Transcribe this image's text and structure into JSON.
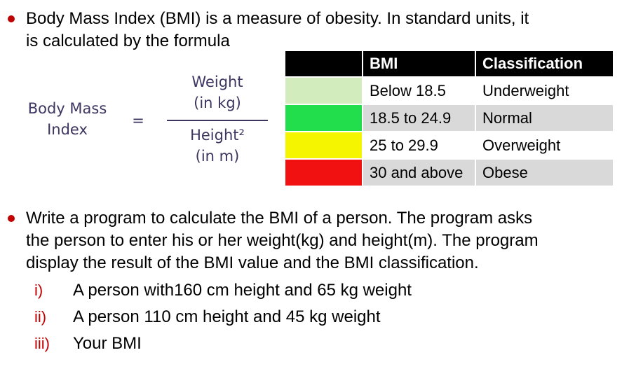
{
  "bullet1": {
    "line1": "Body Mass Index (BMI) is a measure of obesity. In standard units, it",
    "line2": "is calculated by the formula"
  },
  "formula": {
    "lhs_line1": "Body Mass",
    "lhs_line2": "Index",
    "equals": "=",
    "numerator_line1": "Weight",
    "numerator_line2": "(in kg)",
    "denominator_line1": "Height²",
    "denominator_line2": "(in m)"
  },
  "table": {
    "headers": [
      "BMI",
      "Classification"
    ],
    "rows": [
      {
        "color": "#d3ecbd",
        "bmi": "Below 18.5",
        "classification": "Underweight"
      },
      {
        "color": "#22dd4c",
        "bmi": "18.5 to 24.9",
        "classification": "Normal"
      },
      {
        "color": "#f5f500",
        "bmi": "25 to 29.9",
        "classification": "Overweight"
      },
      {
        "color": "#f21111",
        "bmi": "30 and above",
        "classification": "Obese"
      }
    ],
    "row_bg": [
      "#ffffff",
      "#d9d9d9",
      "#ffffff",
      "#d9d9d9"
    ]
  },
  "bullet2": {
    "line1": "Write a program to calculate the BMI of a person. The program asks",
    "line2": "the person to enter his or her weight(kg) and height(m). The program",
    "line3": "display the result of the BMI value and the BMI classification."
  },
  "subitems": [
    {
      "num": "i)",
      "text": "A person with160 cm height and 65 kg weight"
    },
    {
      "num": "ii)",
      "text": "A person 110 cm height and 45 kg weight"
    },
    {
      "num": "iii)",
      "text": "Your BMI"
    }
  ]
}
